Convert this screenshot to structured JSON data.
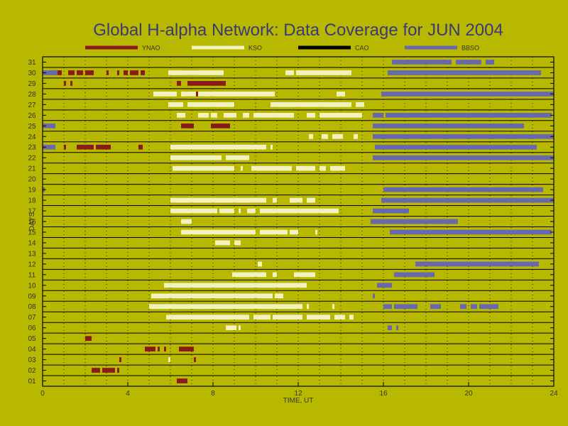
{
  "chart_data": {
    "type": "timeline",
    "title": "Global H-alpha Network: Data Coverage for JUN 2004",
    "xlabel": "TIME, UT",
    "ylabel": "DAYS",
    "xlim": [
      0,
      24
    ],
    "ylim": [
      0.5,
      31.5
    ],
    "x_ticks": [
      0,
      4,
      8,
      12,
      16,
      20,
      24
    ],
    "y_ticks": [
      "01",
      "02",
      "03",
      "04",
      "05",
      "06",
      "07",
      "08",
      "09",
      "10",
      "11",
      "12",
      "13",
      "14",
      "15",
      "16",
      "17",
      "18",
      "19",
      "20",
      "21",
      "22",
      "23",
      "24",
      "25",
      "26",
      "27",
      "28",
      "29",
      "30",
      "31"
    ],
    "grid": "dotted vertical every 1 hour, solid horizontal per day",
    "legend_placement": "top",
    "colors": {
      "background": "#b9b800",
      "axis": "#000000",
      "grid": "#2a2a00",
      "title": "#3a3a7a"
    },
    "series": [
      {
        "name": "YNAO",
        "color": "#8b1a1a",
        "segments": [
          [
            30,
            0.4,
            0.6
          ],
          [
            30,
            0.7,
            0.9
          ],
          [
            30,
            1.2,
            1.5
          ],
          [
            30,
            1.6,
            1.9
          ],
          [
            30,
            2.0,
            2.4
          ],
          [
            30,
            3.0,
            3.1
          ],
          [
            30,
            3.5,
            3.6
          ],
          [
            30,
            3.8,
            4.0
          ],
          [
            30,
            4.1,
            4.5
          ],
          [
            30,
            4.6,
            4.8
          ],
          [
            30,
            6.6,
            7.3
          ],
          [
            29,
            1.0,
            1.1
          ],
          [
            29,
            1.3,
            1.4
          ],
          [
            29,
            6.3,
            6.5
          ],
          [
            29,
            6.8,
            8.6
          ],
          [
            28,
            6.7,
            7.6
          ],
          [
            28,
            7.8,
            8.0
          ],
          [
            25,
            6.5,
            7.1
          ],
          [
            25,
            7.9,
            8.8
          ],
          [
            23,
            1.0,
            1.1
          ],
          [
            23,
            1.6,
            2.4
          ],
          [
            23,
            2.5,
            3.2
          ],
          [
            23,
            4.5,
            4.7
          ],
          [
            8,
            6.4,
            6.6
          ],
          [
            8,
            7.0,
            7.3
          ],
          [
            8,
            7.5,
            8.2
          ],
          [
            8,
            8.4,
            8.8
          ],
          [
            8,
            8.9,
            9.2
          ],
          [
            8,
            10.0,
            10.1
          ],
          [
            5,
            2.0,
            2.3
          ],
          [
            4,
            4.8,
            5.3
          ],
          [
            4,
            5.4,
            5.5
          ],
          [
            4,
            5.7,
            5.8
          ],
          [
            4,
            6.4,
            7.1
          ],
          [
            3,
            3.6,
            3.7
          ],
          [
            3,
            7.1,
            7.2
          ],
          [
            2,
            2.3,
            2.7
          ],
          [
            2,
            2.8,
            3.4
          ],
          [
            2,
            3.5,
            3.6
          ],
          [
            1,
            6.3,
            6.8
          ]
        ]
      },
      {
        "name": "KSO",
        "color": "#f2f2c0",
        "segments": [
          [
            30,
            5.9,
            8.5
          ],
          [
            30,
            11.4,
            11.8
          ],
          [
            30,
            11.9,
            14.5
          ],
          [
            28,
            5.2,
            6.3
          ],
          [
            28,
            6.5,
            7.2
          ],
          [
            28,
            7.3,
            10.9
          ],
          [
            28,
            13.8,
            14.2
          ],
          [
            27,
            5.9,
            6.6
          ],
          [
            27,
            6.8,
            9.0
          ],
          [
            27,
            10.7,
            14.5
          ],
          [
            27,
            14.7,
            15.1
          ],
          [
            26,
            6.3,
            6.7
          ],
          [
            26,
            7.3,
            7.8
          ],
          [
            26,
            7.9,
            8.2
          ],
          [
            26,
            8.5,
            9.1
          ],
          [
            26,
            9.4,
            9.7
          ],
          [
            26,
            9.9,
            11.8
          ],
          [
            26,
            12.4,
            12.8
          ],
          [
            26,
            13.0,
            15.0
          ],
          [
            24,
            12.5,
            12.7
          ],
          [
            24,
            13.1,
            13.4
          ],
          [
            24,
            13.6,
            14.1
          ],
          [
            24,
            14.6,
            14.8
          ],
          [
            23,
            6.0,
            10.5
          ],
          [
            23,
            10.7,
            10.8
          ],
          [
            22,
            6.0,
            8.4
          ],
          [
            22,
            8.6,
            9.7
          ],
          [
            21,
            6.1,
            9.0
          ],
          [
            21,
            9.3,
            9.4
          ],
          [
            21,
            9.8,
            11.7
          ],
          [
            21,
            11.9,
            12.8
          ],
          [
            21,
            13.0,
            13.3
          ],
          [
            21,
            13.5,
            14.2
          ],
          [
            18,
            6.0,
            10.5
          ],
          [
            18,
            10.8,
            11.0
          ],
          [
            18,
            11.6,
            12.2
          ],
          [
            18,
            12.4,
            12.8
          ],
          [
            17,
            6.0,
            8.2
          ],
          [
            17,
            8.3,
            9.0
          ],
          [
            17,
            9.2,
            9.3
          ],
          [
            17,
            9.6,
            10.0
          ],
          [
            17,
            10.2,
            13.9
          ],
          [
            16,
            6.5,
            7.0
          ],
          [
            15,
            6.5,
            10.0
          ],
          [
            15,
            10.2,
            11.5
          ],
          [
            15,
            11.6,
            12.0
          ],
          [
            15,
            12.8,
            12.9
          ],
          [
            14,
            8.1,
            8.8
          ],
          [
            14,
            9.0,
            9.3
          ],
          [
            12,
            10.1,
            10.3
          ],
          [
            11,
            8.9,
            10.5
          ],
          [
            11,
            10.8,
            11.0
          ],
          [
            11,
            11.8,
            12.8
          ],
          [
            10,
            5.7,
            12.4
          ],
          [
            9,
            5.1,
            10.8
          ],
          [
            9,
            10.9,
            11.3
          ],
          [
            8,
            5.0,
            12.2
          ],
          [
            8,
            12.4,
            12.5
          ],
          [
            8,
            13.6,
            13.7
          ],
          [
            7,
            5.8,
            9.7
          ],
          [
            7,
            9.9,
            10.7
          ],
          [
            7,
            10.8,
            12.2
          ],
          [
            7,
            12.4,
            13.5
          ],
          [
            7,
            13.7,
            14.2
          ],
          [
            7,
            14.4,
            14.6
          ],
          [
            6,
            8.6,
            9.1
          ],
          [
            6,
            9.2,
            9.3
          ],
          [
            3,
            5.9,
            6.0
          ]
        ]
      },
      {
        "name": "CAO",
        "color": "#000000",
        "segments": []
      },
      {
        "name": "BBSO",
        "color": "#6868b0",
        "segments": [
          [
            31,
            16.4,
            19.2
          ],
          [
            31,
            19.4,
            20.6
          ],
          [
            31,
            20.8,
            21.2
          ],
          [
            30,
            0.0,
            0.7
          ],
          [
            30,
            16.2,
            23.4
          ],
          [
            28,
            15.9,
            24.0
          ],
          [
            26,
            15.5,
            16.0
          ],
          [
            26,
            16.1,
            23.9
          ],
          [
            25,
            0.0,
            0.6
          ],
          [
            25,
            15.5,
            22.6
          ],
          [
            24,
            15.5,
            24.0
          ],
          [
            23,
            0.0,
            0.6
          ],
          [
            23,
            15.6,
            23.2
          ],
          [
            22,
            15.5,
            24.0
          ],
          [
            19,
            0.0,
            0.1
          ],
          [
            19,
            16.0,
            23.5
          ],
          [
            18,
            15.9,
            24.0
          ],
          [
            17,
            15.5,
            17.2
          ],
          [
            16,
            15.4,
            19.5
          ],
          [
            15,
            16.3,
            23.9
          ],
          [
            12,
            17.5,
            23.3
          ],
          [
            11,
            16.5,
            18.4
          ],
          [
            10,
            15.7,
            16.4
          ],
          [
            9,
            15.5,
            15.6
          ],
          [
            8,
            16.0,
            16.4
          ],
          [
            8,
            16.5,
            17.6
          ],
          [
            8,
            18.2,
            18.7
          ],
          [
            8,
            19.6,
            19.9
          ],
          [
            8,
            20.1,
            20.4
          ],
          [
            8,
            20.5,
            21.4
          ],
          [
            6,
            16.2,
            16.4
          ],
          [
            6,
            16.6,
            16.7
          ]
        ]
      }
    ]
  }
}
